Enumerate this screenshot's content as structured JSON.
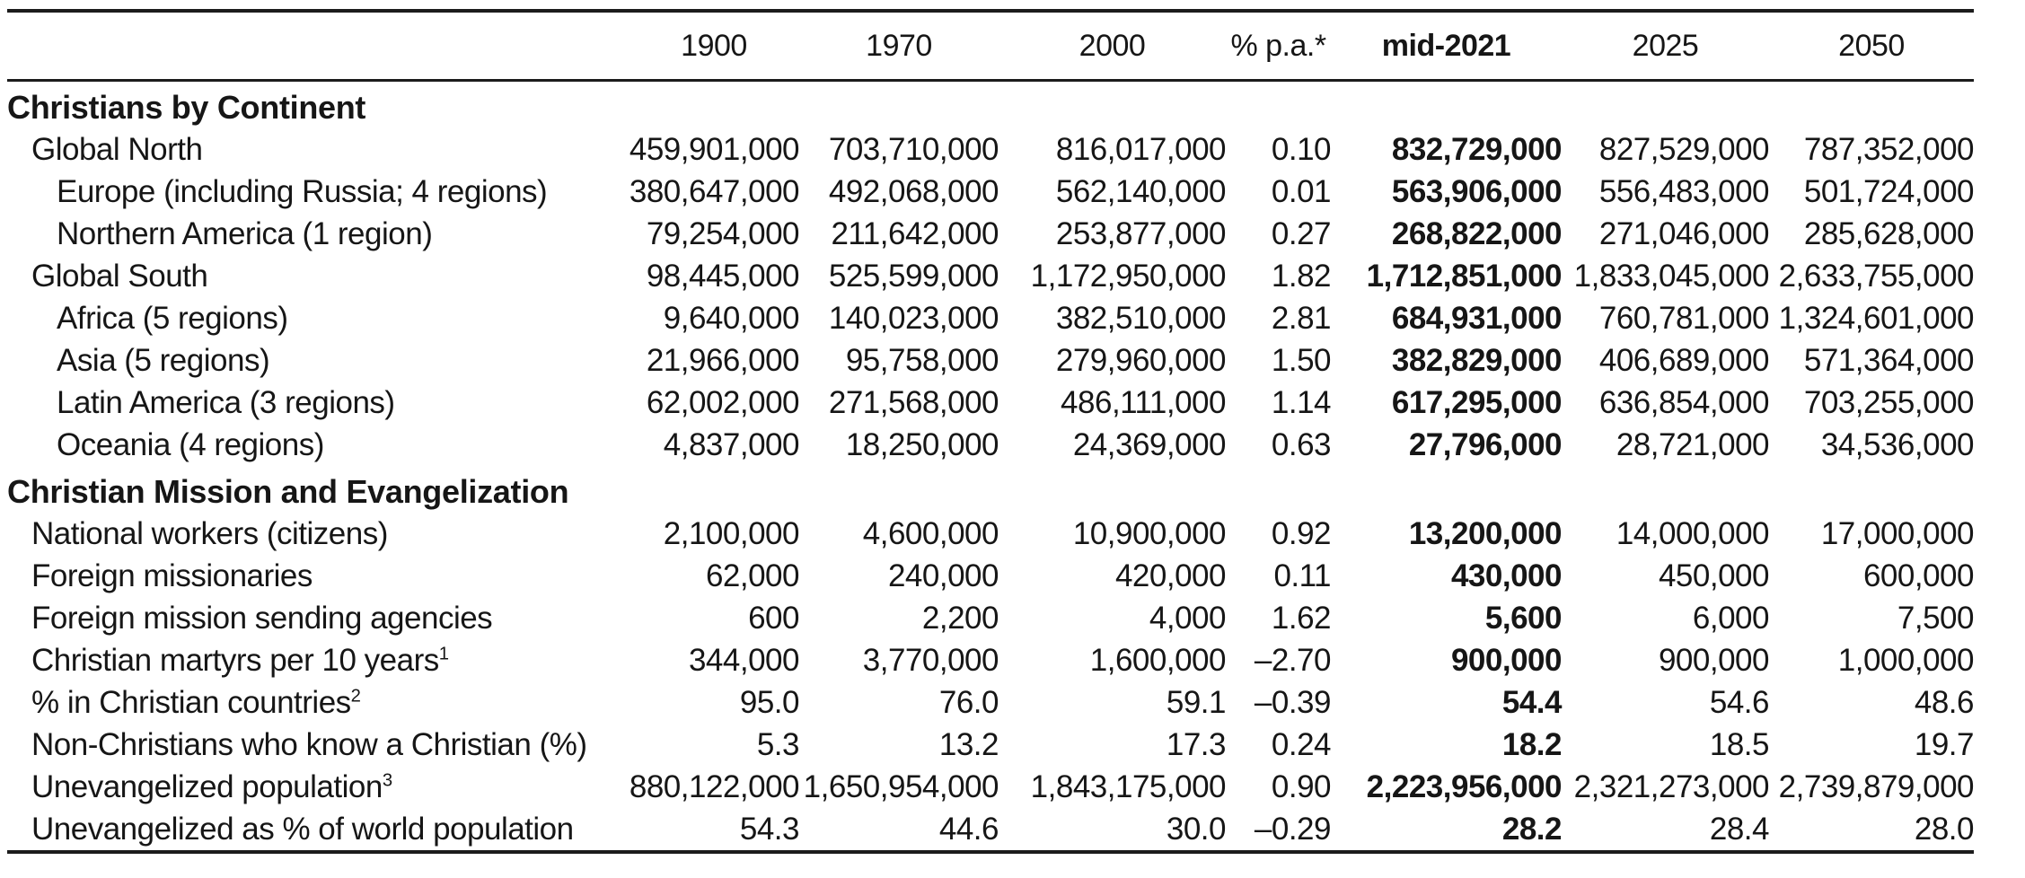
{
  "page": {
    "background": "#ffffff",
    "text_color": "#161616",
    "rule_color": "#1c1c1c"
  },
  "chart_data": {
    "type": "table",
    "columns": [
      "",
      "1900",
      "1970",
      "2000",
      "% p.a.*",
      "mid-2021",
      "2025",
      "2050"
    ],
    "emphasized_column": "mid-2021",
    "sections": [
      {
        "title": "Christians by Continent",
        "rows": [
          {
            "label": "Global North",
            "sup": "",
            "indent": 1,
            "values": [
              "459,901,000",
              "703,710,000",
              "816,017,000",
              "0.10",
              "832,729,000",
              "827,529,000",
              "787,352,000"
            ]
          },
          {
            "label": "Europe (including Russia; 4 regions)",
            "sup": "",
            "indent": 2,
            "values": [
              "380,647,000",
              "492,068,000",
              "562,140,000",
              "0.01",
              "563,906,000",
              "556,483,000",
              "501,724,000"
            ]
          },
          {
            "label": "Northern America (1 region)",
            "sup": "",
            "indent": 2,
            "values": [
              "79,254,000",
              "211,642,000",
              "253,877,000",
              "0.27",
              "268,822,000",
              "271,046,000",
              "285,628,000"
            ]
          },
          {
            "label": "Global South",
            "sup": "",
            "indent": 1,
            "values": [
              "98,445,000",
              "525,599,000",
              "1,172,950,000",
              "1.82",
              "1,712,851,000",
              "1,833,045,000",
              "2,633,755,000"
            ]
          },
          {
            "label": "Africa (5 regions)",
            "sup": "",
            "indent": 2,
            "values": [
              "9,640,000",
              "140,023,000",
              "382,510,000",
              "2.81",
              "684,931,000",
              "760,781,000",
              "1,324,601,000"
            ]
          },
          {
            "label": "Asia (5 regions)",
            "sup": "",
            "indent": 2,
            "values": [
              "21,966,000",
              "95,758,000",
              "279,960,000",
              "1.50",
              "382,829,000",
              "406,689,000",
              "571,364,000"
            ]
          },
          {
            "label": "Latin America (3 regions)",
            "sup": "",
            "indent": 2,
            "values": [
              "62,002,000",
              "271,568,000",
              "486,111,000",
              "1.14",
              "617,295,000",
              "636,854,000",
              "703,255,000"
            ]
          },
          {
            "label": "Oceania (4 regions)",
            "sup": "",
            "indent": 2,
            "values": [
              "4,837,000",
              "18,250,000",
              "24,369,000",
              "0.63",
              "27,796,000",
              "28,721,000",
              "34,536,000"
            ]
          }
        ]
      },
      {
        "title": "Christian Mission and Evangelization",
        "rows": [
          {
            "label": "National workers (citizens)",
            "sup": "",
            "indent": 1,
            "values": [
              "2,100,000",
              "4,600,000",
              "10,900,000",
              "0.92",
              "13,200,000",
              "14,000,000",
              "17,000,000"
            ]
          },
          {
            "label": "Foreign missionaries",
            "sup": "",
            "indent": 1,
            "values": [
              "62,000",
              "240,000",
              "420,000",
              "0.11",
              "430,000",
              "450,000",
              "600,000"
            ]
          },
          {
            "label": "Foreign mission sending agencies",
            "sup": "",
            "indent": 1,
            "values": [
              "600",
              "2,200",
              "4,000",
              "1.62",
              "5,600",
              "6,000",
              "7,500"
            ]
          },
          {
            "label": "Christian martyrs per 10 years",
            "sup": "1",
            "indent": 1,
            "values": [
              "344,000",
              "3,770,000",
              "1,600,000",
              "–2.70",
              "900,000",
              "900,000",
              "1,000,000"
            ]
          },
          {
            "label": "% in Christian countries",
            "sup": "2",
            "indent": 1,
            "values": [
              "95.0",
              "76.0",
              "59.1",
              "–0.39",
              "54.4",
              "54.6",
              "48.6"
            ]
          },
          {
            "label": "Non-Christians who know a Christian (%)",
            "sup": "",
            "indent": 1,
            "values": [
              "5.3",
              "13.2",
              "17.3",
              "0.24",
              "18.2",
              "18.5",
              "19.7"
            ]
          },
          {
            "label": "Unevangelized population",
            "sup": "3",
            "indent": 1,
            "values": [
              "880,122,000",
              "1,650,954,000",
              "1,843,175,000",
              "0.90",
              "2,223,956,000",
              "2,321,273,000",
              "2,739,879,000"
            ]
          },
          {
            "label": "Unevangelized as % of world population",
            "sup": "",
            "indent": 1,
            "values": [
              "54.3",
              "44.6",
              "30.0",
              "–0.29",
              "28.2",
              "28.4",
              "28.0"
            ]
          }
        ]
      }
    ]
  }
}
